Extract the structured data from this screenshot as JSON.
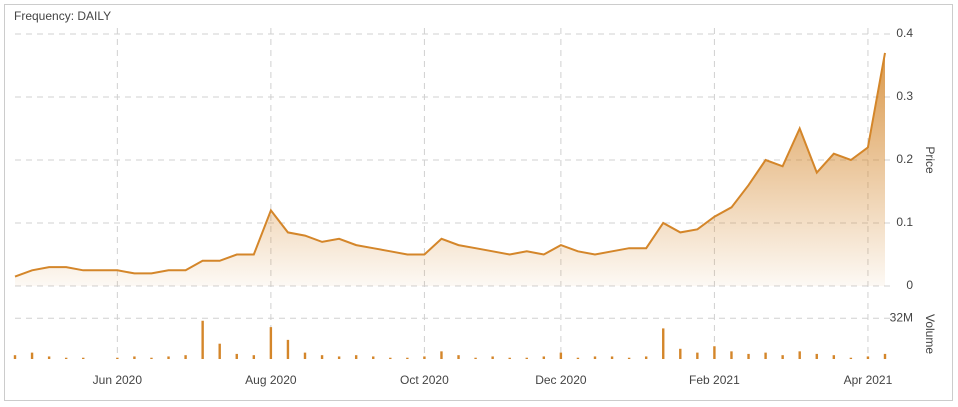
{
  "chart_data": [
    {
      "type": "area",
      "frequency_label": "Frequency: DAILY",
      "y_label": "Price",
      "color": "#d4862a",
      "grid": true,
      "categories": [
        null,
        null,
        null,
        null,
        null,
        null,
        "Jun 2020",
        null,
        null,
        null,
        null,
        null,
        null,
        null,
        null,
        "Aug 2020",
        null,
        null,
        null,
        null,
        null,
        null,
        null,
        null,
        "Oct 2020",
        null,
        null,
        null,
        null,
        null,
        null,
        null,
        "Dec 2020",
        null,
        null,
        null,
        null,
        null,
        null,
        null,
        null,
        "Feb 2021",
        null,
        null,
        null,
        null,
        null,
        null,
        null,
        null,
        "Apr 2021",
        null
      ],
      "values": [
        0.015,
        0.025,
        0.03,
        0.03,
        0.025,
        0.025,
        0.025,
        0.02,
        0.02,
        0.025,
        0.025,
        0.04,
        0.04,
        0.05,
        0.05,
        0.12,
        0.085,
        0.08,
        0.07,
        0.075,
        0.065,
        0.06,
        0.055,
        0.05,
        0.05,
        0.075,
        0.065,
        0.06,
        0.055,
        0.05,
        0.055,
        0.05,
        0.065,
        0.055,
        0.05,
        0.055,
        0.06,
        0.06,
        0.1,
        0.085,
        0.09,
        0.11,
        0.125,
        0.16,
        0.2,
        0.19,
        0.25,
        0.18,
        0.21,
        0.2,
        0.22,
        0.37
      ],
      "ylim": [
        0,
        0.4
      ],
      "yticks": [
        0,
        0.1,
        0.2,
        0.3,
        0.4
      ]
    },
    {
      "type": "bar",
      "y_label": "Volume",
      "color": "#d4862a",
      "values": [
        3000000,
        5000000,
        2000000,
        1000000,
        1000000,
        0,
        1000000,
        2000000,
        1000000,
        2000000,
        3000000,
        30000000,
        12000000,
        4000000,
        3000000,
        25000000,
        15000000,
        5000000,
        3000000,
        2000000,
        3000000,
        2000000,
        1000000,
        1000000,
        2000000,
        6000000,
        3000000,
        1000000,
        2000000,
        1000000,
        1000000,
        2000000,
        5000000,
        1000000,
        2000000,
        2000000,
        1000000,
        2000000,
        24000000,
        8000000,
        5000000,
        10000000,
        6000000,
        4000000,
        5000000,
        3000000,
        6000000,
        4000000,
        3000000,
        1000000,
        2000000,
        4000000
      ],
      "ylim": [
        0,
        40000000
      ],
      "yticks": [
        {
          "value": 32000000,
          "label": "32M"
        }
      ]
    }
  ]
}
